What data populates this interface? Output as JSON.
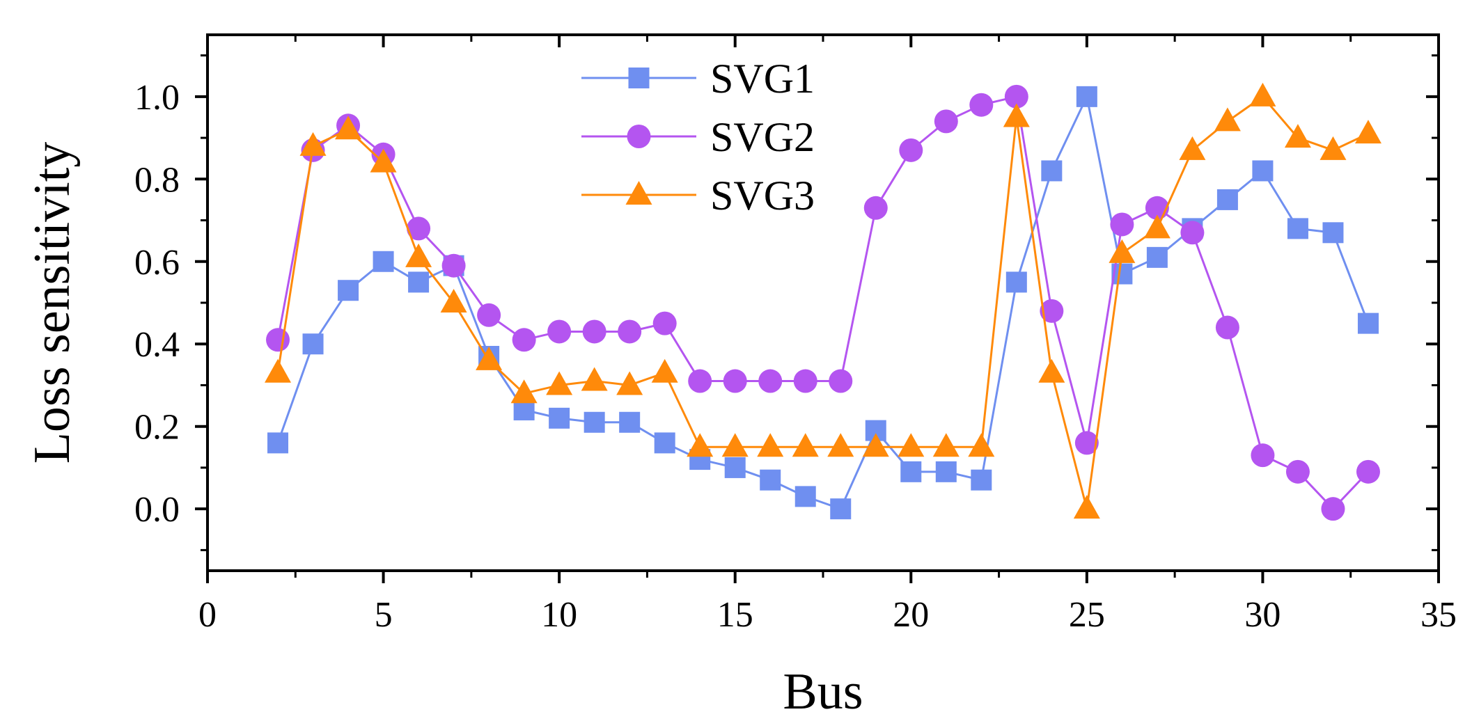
{
  "chart_data": {
    "type": "line",
    "xlabel": "Bus",
    "ylabel": "Loss sensitivity",
    "xlim": [
      0,
      35
    ],
    "ylim": [
      -0.15,
      1.15
    ],
    "xticks": [
      0,
      5,
      10,
      15,
      20,
      25,
      30,
      35
    ],
    "xtick_labels": [
      "0",
      "5",
      "10",
      "15",
      "20",
      "25",
      "30",
      "35"
    ],
    "yticks": [
      0.0,
      0.2,
      0.4,
      0.6,
      0.8,
      1.0
    ],
    "ytick_labels": [
      "0.0",
      "0.2",
      "0.4",
      "0.6",
      "0.8",
      "1.0"
    ],
    "grid": false,
    "legend_position": "top-center",
    "x": [
      2,
      3,
      4,
      5,
      6,
      7,
      8,
      9,
      10,
      11,
      12,
      13,
      14,
      15,
      16,
      17,
      18,
      19,
      20,
      21,
      22,
      23,
      24,
      25,
      26,
      27,
      28,
      29,
      30,
      31,
      32,
      33
    ],
    "series": [
      {
        "name": "SVG1",
        "marker": "square",
        "color": "#6f8ff0",
        "values": [
          0.16,
          0.4,
          0.53,
          0.6,
          0.55,
          0.59,
          0.37,
          0.24,
          0.22,
          0.21,
          0.21,
          0.16,
          0.12,
          0.1,
          0.07,
          0.03,
          0.0,
          0.19,
          0.09,
          0.09,
          0.07,
          0.55,
          0.82,
          1.0,
          0.57,
          0.61,
          0.68,
          0.75,
          0.82,
          0.68,
          0.67,
          0.45
        ]
      },
      {
        "name": "SVG2",
        "marker": "circle",
        "color": "#b455f0",
        "values": [
          0.41,
          0.87,
          0.93,
          0.86,
          0.68,
          0.59,
          0.47,
          0.41,
          0.43,
          0.43,
          0.43,
          0.45,
          0.31,
          0.31,
          0.31,
          0.31,
          0.31,
          0.73,
          0.87,
          0.94,
          0.98,
          1.0,
          0.48,
          0.16,
          0.69,
          0.73,
          0.67,
          0.44,
          0.13,
          0.09,
          0.0,
          0.09
        ]
      },
      {
        "name": "SVG3",
        "marker": "triangle",
        "color": "#ff8a0a",
        "values": [
          0.33,
          0.88,
          0.92,
          0.84,
          0.61,
          0.5,
          0.36,
          0.28,
          0.3,
          0.31,
          0.3,
          0.33,
          0.15,
          0.15,
          0.15,
          0.15,
          0.15,
          0.15,
          0.15,
          0.15,
          0.15,
          0.95,
          0.33,
          0.0,
          0.62,
          0.68,
          0.87,
          0.94,
          1.0,
          0.9,
          0.87,
          0.91
        ]
      }
    ]
  }
}
